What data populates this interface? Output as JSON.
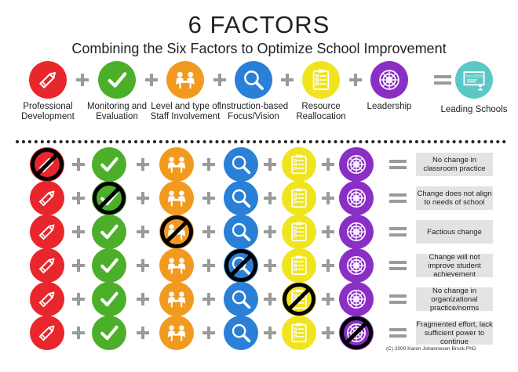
{
  "title": "6 FACTORS",
  "subtitle": "Combining the Six Factors to Optimize School Improvement",
  "factors": [
    {
      "label": "Professional Development",
      "icon": "pencil-icon",
      "color": "#e8262c"
    },
    {
      "label": "Monitoring and Evaluation",
      "icon": "checkmark-icon",
      "color": "#4caf2a"
    },
    {
      "label": "Level and type of Staff Involvement",
      "icon": "meeting-icon",
      "color": "#f29a1f"
    },
    {
      "label": "Instruction-based Focus/Vision",
      "icon": "magnifier-icon",
      "color": "#2a7fd6"
    },
    {
      "label": "Resource Reallocation",
      "icon": "checklist-icon",
      "color": "#f0e41e"
    },
    {
      "label": "Leadership",
      "icon": "target-icon",
      "color": "#8a2fc6"
    }
  ],
  "result_label": "Leading Schools",
  "result_icon": "chalkboard-icon",
  "result_board_text": "SUCCESS",
  "result_color": "#5bc8c6",
  "rows": [
    {
      "missing": 0,
      "outcome": "No change in classroom practice"
    },
    {
      "missing": 1,
      "outcome": "Change does not align to needs of school"
    },
    {
      "missing": 2,
      "outcome": "Factious change"
    },
    {
      "missing": 3,
      "outcome": "Change will not improve student achievement"
    },
    {
      "missing": 4,
      "outcome": "No change in organizational practice/norms"
    },
    {
      "missing": 5,
      "outcome": "Fragmented effort, lack sufficient power to continue"
    }
  ],
  "copyright": "(C) 2000 Karen Johannesen Brock PhD"
}
